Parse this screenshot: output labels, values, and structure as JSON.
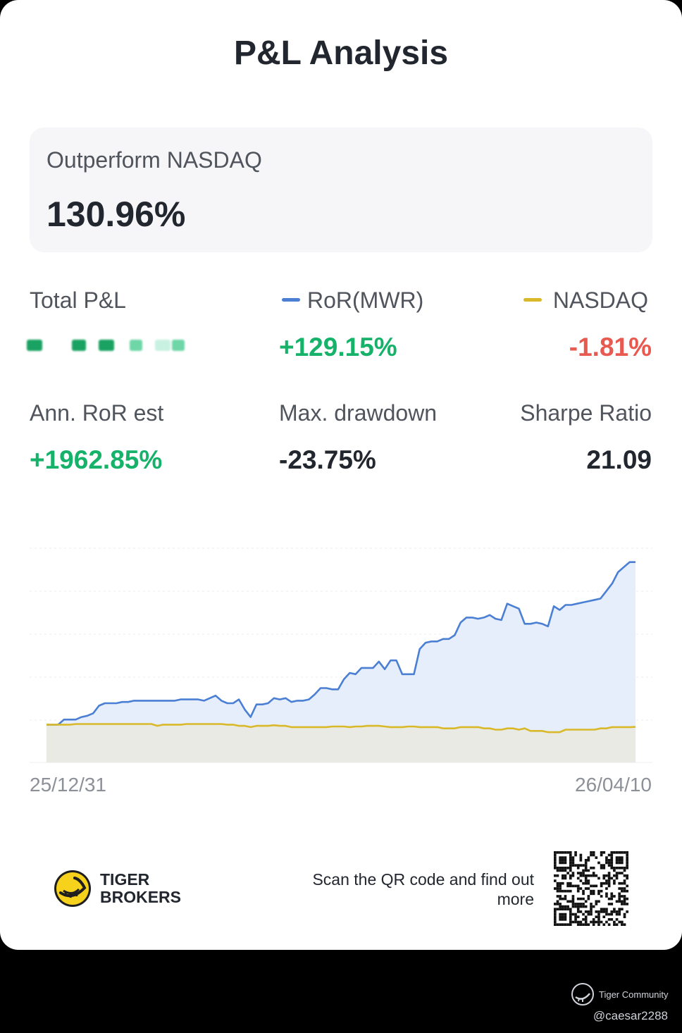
{
  "title": "P&L Analysis",
  "outperform": {
    "label": "Outperform NASDAQ",
    "value": "130.96%"
  },
  "stats": {
    "total_pl_label": "Total P&L",
    "ror_label": "RoR(MWR)",
    "ror_value": "+129.15%",
    "nasdaq_label": "NASDAQ",
    "nasdaq_value": "-1.81%",
    "ann_ror_label": "Ann. RoR est",
    "ann_ror_value": "+1962.85%",
    "max_dd_label": "Max. drawdown",
    "max_dd_value": "-23.75%",
    "sharpe_label": "Sharpe Ratio",
    "sharpe_value": "21.09"
  },
  "colors": {
    "ror_line": "#4a7fd4",
    "ror_fill": "#e6eefb",
    "nasdaq_line": "#d9b92a",
    "nasdaq_fill": "#e9e9e0",
    "positive": "#17b26a",
    "negative": "#e85a4f"
  },
  "chart_data": {
    "type": "line",
    "x_start": "25/12/31",
    "x_end": "26/04/10",
    "series": [
      {
        "name": "RoR(MWR)",
        "values": [
          0,
          0,
          0,
          4,
          4,
          4,
          6,
          7,
          9,
          15,
          17,
          17,
          17,
          18,
          18,
          19,
          19,
          19,
          19,
          19,
          19,
          19,
          19,
          20,
          20,
          20,
          20,
          19,
          21,
          23,
          19,
          17,
          17,
          20,
          12,
          6,
          16,
          16,
          17,
          21,
          20,
          21,
          18,
          19,
          19,
          20,
          24,
          29,
          29,
          28,
          28,
          36,
          41,
          40,
          45,
          45,
          45,
          50,
          44,
          51,
          51,
          40,
          40,
          40,
          60,
          65,
          66,
          66,
          68,
          68,
          71,
          81,
          85,
          85,
          84,
          85,
          87,
          84,
          83,
          96,
          94,
          92,
          80,
          80,
          81,
          80,
          78,
          94,
          91,
          95,
          95,
          96,
          97,
          98,
          99,
          100,
          106,
          112,
          121,
          125,
          129,
          129
        ]
      },
      {
        "name": "NASDAQ",
        "values": [
          0,
          0,
          0,
          0,
          0,
          0.5,
          0.5,
          0.5,
          0.5,
          0.5,
          0.5,
          0.5,
          0.5,
          0.5,
          0.5,
          0.5,
          0.5,
          0.5,
          0.5,
          -1,
          0,
          0,
          0,
          0,
          0.5,
          0.5,
          0.5,
          0.5,
          0.5,
          0.5,
          0.5,
          0,
          0,
          -1,
          -1,
          -2,
          -1,
          -1,
          -1,
          -0.5,
          -1,
          -1,
          -2,
          -2,
          -2,
          -2,
          -2,
          -2,
          -2,
          -1.5,
          -1.5,
          -1.5,
          -2,
          -1.5,
          -1.5,
          -1,
          -1,
          -1,
          -1.5,
          -2,
          -2,
          -2,
          -1.5,
          -1.5,
          -2,
          -2,
          -2,
          -2,
          -3,
          -3,
          -3,
          -2,
          -2,
          -2,
          -2,
          -3,
          -3,
          -4,
          -4,
          -3,
          -3,
          -4,
          -3,
          -5,
          -5,
          -5,
          -6,
          -6,
          -6,
          -4,
          -4,
          -4,
          -4,
          -4,
          -4,
          -3,
          -3,
          -2,
          -2,
          -2,
          -2,
          -1.8
        ]
      }
    ],
    "ylim": [
      -30,
      140
    ],
    "grid": true
  }
}
